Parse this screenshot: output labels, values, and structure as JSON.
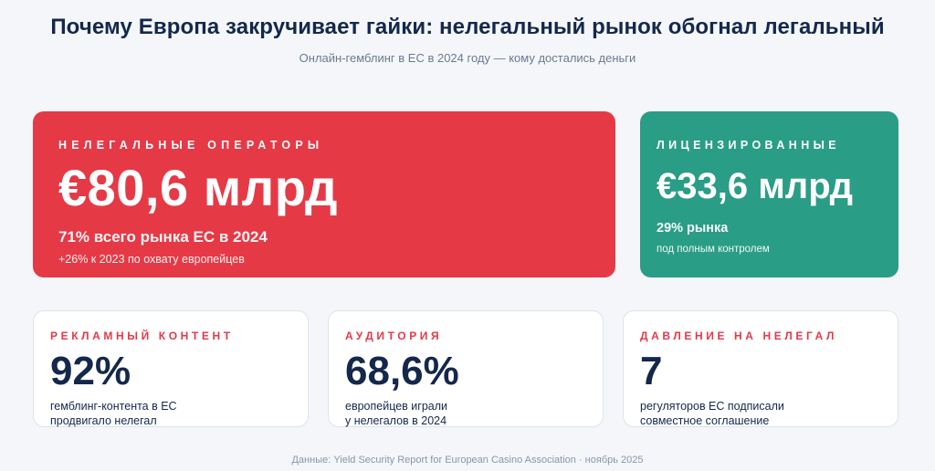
{
  "header": {
    "title": "Почему Европа закручивает гайки: нелегальный рынок обогнал легальный",
    "subtitle": "Онлайн-гемблинг в ЕС в 2024 году — кому достались деньги"
  },
  "illegal": {
    "kicker": "Нелегальные операторы",
    "value": "€80,6 млрд",
    "share": "71% всего рынка ЕС в 2024",
    "note": "+26% к 2023 по охвату европейцев",
    "color": "#e63946"
  },
  "licensed": {
    "kicker": "Лицензированные",
    "value": "€33,6 млрд",
    "share": "29% рынка",
    "note": "под полным контролем",
    "color": "#2a9d86"
  },
  "stats": [
    {
      "kicker": "Рекламный контент",
      "value": "92%",
      "desc": "гемблинг-контента в ЕС\nпродвигало нелегал"
    },
    {
      "kicker": "Аудитория",
      "value": "68,6%",
      "desc": "европейцев играли\nу нелегалов в 2024"
    },
    {
      "kicker": "Давление на нелегал",
      "value": "7",
      "desc": "регуляторов ЕС подписали\nсовместное соглашение"
    }
  ],
  "footer": {
    "source": "Данные: Yield Security Report for European Casino Association · ноябрь 2025"
  },
  "colors": {
    "background": "#f4f6fa",
    "title": "#14284b",
    "accent_red": "#e63946",
    "accent_green": "#2a9d86"
  }
}
